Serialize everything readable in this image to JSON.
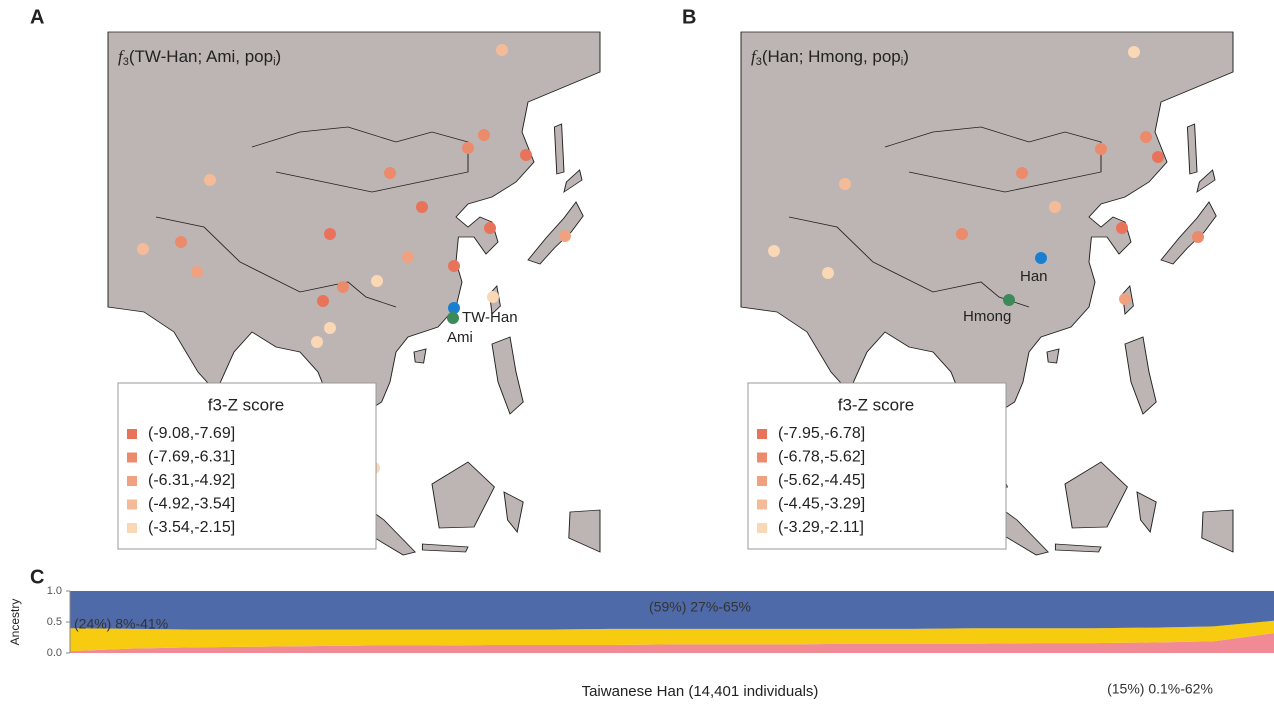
{
  "panels": [
    {
      "label": "A",
      "title": {
        "f": "f",
        "sub": "3",
        "main": "(TW-Han; Ami, pop",
        "sub_i": "i",
        "end": ")"
      },
      "legend_title": "f3-Z score",
      "bins": [
        "(-9.08,-7.69]",
        "(-7.69,-6.31]",
        "(-6.31,-4.92]",
        "(-4.92,-3.54]",
        "(-3.54,-2.15]"
      ],
      "bin_colors": [
        "#e8735a",
        "#ec8a6c",
        "#f0a280",
        "#f5bb98",
        "#fad7b5"
      ],
      "reference_labels": [
        "TW-Han",
        "Ami"
      ],
      "reference_colors": [
        "#1a7fd1",
        "#3c8a57"
      ]
    },
    {
      "label": "B",
      "title": {
        "f": "f",
        "sub": "3",
        "main": "(Han; Hmong, pop",
        "sub_i": "i",
        "end": ")"
      },
      "legend_title": "f3-Z score",
      "bins": [
        "(-7.95,-6.78]",
        "(-6.78,-5.62]",
        "(-5.62,-4.45]",
        "(-4.45,-3.29]",
        "(-3.29,-2.11]"
      ],
      "bin_colors": [
        "#e8735a",
        "#ec8a6c",
        "#f0a280",
        "#f5bb98",
        "#fad7b5"
      ],
      "reference_labels": [
        "Han",
        "Hmong"
      ],
      "reference_colors": [
        "#1a7fd1",
        "#3c8a57"
      ]
    }
  ],
  "chart_data": {
    "type": "area",
    "panel_label": "C",
    "xlabel": "Taiwanese Han (14,401 individuals)",
    "ylabel": "Ancestry",
    "categories": [
      null,
      null,
      null,
      null,
      null,
      null,
      null,
      null,
      null,
      null,
      null,
      null,
      null,
      null,
      null,
      null,
      null,
      null,
      null,
      null,
      null
    ],
    "series": [
      {
        "color": "#f08a94",
        "values": [
          0.03,
          0.07,
          0.09,
          0.1,
          0.11,
          0.12,
          0.12,
          0.13,
          0.13,
          0.13,
          0.14,
          0.14,
          0.14,
          0.15,
          0.15,
          0.15,
          0.16,
          0.16,
          0.17,
          0.19,
          0.32
        ]
      },
      {
        "color": "#f7cb0f",
        "values": [
          0.37,
          0.32,
          0.29,
          0.28,
          0.27,
          0.26,
          0.26,
          0.25,
          0.25,
          0.26,
          0.25,
          0.25,
          0.25,
          0.24,
          0.24,
          0.25,
          0.24,
          0.24,
          0.24,
          0.24,
          0.2
        ]
      },
      {
        "color": "#4f6aa8",
        "values": [
          0.6,
          0.61,
          0.62,
          0.62,
          0.62,
          0.62,
          0.62,
          0.62,
          0.62,
          0.61,
          0.61,
          0.61,
          0.61,
          0.61,
          0.61,
          0.6,
          0.6,
          0.6,
          0.59,
          0.57,
          0.48
        ]
      }
    ],
    "ylim": [
      0,
      1
    ],
    "yticks": [
      {
        "value": 0,
        "label": "0.0"
      },
      {
        "value": 0.5,
        "label": "0.5"
      },
      {
        "value": 1,
        "label": "1.0"
      }
    ],
    "annotations": [
      "(59%) 27%-65%",
      "(24%) 8%-41%",
      "(15%) 0.1%-62%"
    ]
  }
}
